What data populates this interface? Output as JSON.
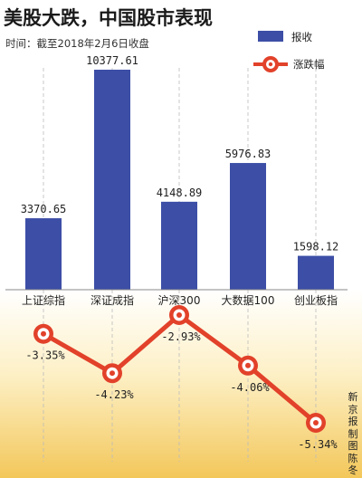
{
  "header": {
    "title": "美股大跌，中国股市表现",
    "subtitle": "时间：截至2018年2月6日收盘"
  },
  "credit": "新京报制图 陈冬",
  "colors": {
    "bar": "#3c4ea6",
    "line": "#e2412a",
    "marker_ring": "#e2412a",
    "background_top": "#ffffff",
    "background_bottom": "#f3c75a",
    "label_text": "#222222"
  },
  "chart_data": {
    "type": "bar+line",
    "categories": [
      "上证综指",
      "深证成指",
      "沪深300",
      "大数据100",
      "创业板指"
    ],
    "series": [
      {
        "name": "报收",
        "type": "bar",
        "values": [
          3370.65,
          10377.61,
          4148.89,
          5976.83,
          1598.12
        ],
        "labels": [
          "3370.65",
          "10377.61",
          "4148.89",
          "5976.83",
          "1598.12"
        ]
      },
      {
        "name": "涨跌幅",
        "type": "line",
        "unit": "%",
        "values": [
          -3.35,
          -4.23,
          -2.93,
          -4.06,
          -5.34
        ],
        "labels": [
          "-3.35%",
          "-4.23%",
          "-2.93%",
          "-4.06%",
          "-5.34%"
        ]
      }
    ],
    "legend": {
      "placement": "top-right",
      "items": [
        "报收",
        "涨跌幅"
      ]
    },
    "grid": false
  }
}
